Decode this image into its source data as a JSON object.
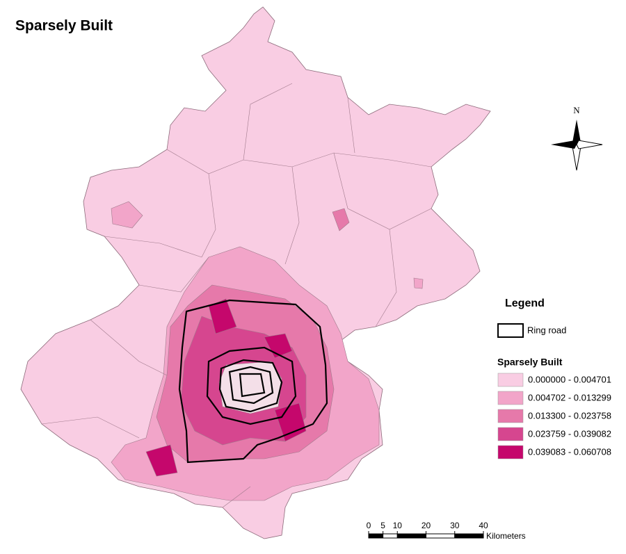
{
  "title": "Sparsely Built",
  "north": "N",
  "legend": {
    "title": "Legend",
    "ring_road": "Ring road",
    "field": "Sparsely Built",
    "classes": [
      {
        "label": "0.000000 - 0.004701",
        "color": "#f9cde3"
      },
      {
        "label": "0.004702 - 0.013299",
        "color": "#f2a5c9"
      },
      {
        "label": "0.013300 - 0.023758",
        "color": "#e679aa"
      },
      {
        "label": "0.023759 - 0.039082",
        "color": "#d6468f"
      },
      {
        "label": "0.039083 - 0.060708",
        "color": "#c5076c"
      }
    ]
  },
  "scale": {
    "ticks": [
      0,
      5,
      10,
      20,
      30,
      40
    ],
    "unit": "Kilometers"
  }
}
